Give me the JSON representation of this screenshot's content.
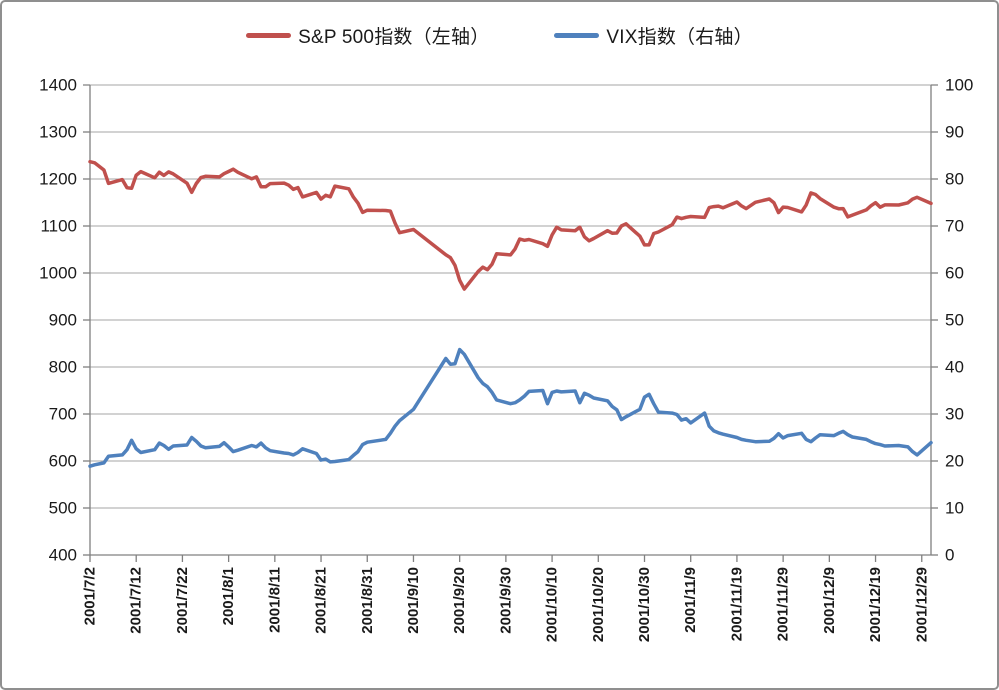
{
  "chart_data": {
    "type": "line",
    "title": "",
    "legend_position": "top",
    "grid": true,
    "x_axis": {
      "type": "date",
      "min": "2001/7/2",
      "max": "2001/12/31",
      "tick_labels": [
        "2001/7/2",
        "2001/7/12",
        "2001/7/22",
        "2001/8/1",
        "2001/8/11",
        "2001/8/21",
        "2001/8/31",
        "2001/9/10",
        "2001/9/20",
        "2001/9/30",
        "2001/10/10",
        "2001/10/20",
        "2001/10/30",
        "2001/11/9",
        "2001/11/19",
        "2001/11/29",
        "2001/12/9",
        "2001/12/19",
        "2001/12/29"
      ]
    },
    "y_axis_left": {
      "min": 400,
      "max": 1400,
      "step": 100,
      "tick_labels": [
        "1400",
        "1300",
        "1200",
        "1100",
        "1000",
        "900",
        "800",
        "700",
        "600",
        "500",
        "400"
      ]
    },
    "y_axis_right": {
      "min": 0,
      "max": 100,
      "step": 10,
      "tick_labels": [
        "100",
        "90",
        "80",
        "70",
        "60",
        "50",
        "40",
        "30",
        "20",
        "10",
        "0"
      ]
    },
    "dates": [
      "2001/7/2",
      "2001/7/3",
      "2001/7/5",
      "2001/7/6",
      "2001/7/9",
      "2001/7/10",
      "2001/7/11",
      "2001/7/12",
      "2001/7/13",
      "2001/7/16",
      "2001/7/17",
      "2001/7/18",
      "2001/7/19",
      "2001/7/20",
      "2001/7/23",
      "2001/7/24",
      "2001/7/25",
      "2001/7/26",
      "2001/7/27",
      "2001/7/30",
      "2001/7/31",
      "2001/8/1",
      "2001/8/2",
      "2001/8/3",
      "2001/8/6",
      "2001/8/7",
      "2001/8/8",
      "2001/8/9",
      "2001/8/10",
      "2001/8/13",
      "2001/8/14",
      "2001/8/15",
      "2001/8/16",
      "2001/8/17",
      "2001/8/20",
      "2001/8/21",
      "2001/8/22",
      "2001/8/23",
      "2001/8/24",
      "2001/8/27",
      "2001/8/28",
      "2001/8/29",
      "2001/8/30",
      "2001/8/31",
      "2001/9/4",
      "2001/9/5",
      "2001/9/6",
      "2001/9/7",
      "2001/9/10",
      "2001/9/17",
      "2001/9/18",
      "2001/9/19",
      "2001/9/20",
      "2001/9/21",
      "2001/9/24",
      "2001/9/25",
      "2001/9/26",
      "2001/9/27",
      "2001/9/28",
      "2001/10/1",
      "2001/10/2",
      "2001/10/3",
      "2001/10/4",
      "2001/10/5",
      "2001/10/8",
      "2001/10/9",
      "2001/10/10",
      "2001/10/11",
      "2001/10/12",
      "2001/10/15",
      "2001/10/16",
      "2001/10/17",
      "2001/10/18",
      "2001/10/19",
      "2001/10/22",
      "2001/10/23",
      "2001/10/24",
      "2001/10/25",
      "2001/10/26",
      "2001/10/29",
      "2001/10/30",
      "2001/10/31",
      "2001/11/1",
      "2001/11/2",
      "2001/11/5",
      "2001/11/6",
      "2001/11/7",
      "2001/11/8",
      "2001/11/9",
      "2001/11/12",
      "2001/11/13",
      "2001/11/14",
      "2001/11/15",
      "2001/11/16",
      "2001/11/19",
      "2001/11/20",
      "2001/11/21",
      "2001/11/23",
      "2001/11/26",
      "2001/11/27",
      "2001/11/28",
      "2001/11/29",
      "2001/11/30",
      "2001/12/3",
      "2001/12/4",
      "2001/12/5",
      "2001/12/6",
      "2001/12/7",
      "2001/12/10",
      "2001/12/11",
      "2001/12/12",
      "2001/12/13",
      "2001/12/14",
      "2001/12/17",
      "2001/12/18",
      "2001/12/19",
      "2001/12/20",
      "2001/12/21",
      "2001/12/24",
      "2001/12/26",
      "2001/12/27",
      "2001/12/28",
      "2001/12/31"
    ],
    "series": [
      {
        "id": "sp500",
        "name": "S&P 500指数（左轴）",
        "axis": "left",
        "color": "#C0504D",
        "values": [
          1236.72,
          1234.45,
          1219.24,
          1190.59,
          1198.78,
          1181.52,
          1180.18,
          1208.14,
          1215.68,
          1202.45,
          1214.44,
          1207.71,
          1215.02,
          1210.85,
          1191.03,
          1171.65,
          1190.49,
          1202.93,
          1205.82,
          1204.52,
          1211.23,
          1215.93,
          1220.75,
          1214.35,
          1200.48,
          1204.4,
          1183.53,
          1183.43,
          1190.16,
          1191.29,
          1186.73,
          1178.02,
          1181.66,
          1161.97,
          1171.41,
          1157.26,
          1165.31,
          1162.09,
          1184.93,
          1179.21,
          1161.51,
          1148.56,
          1129.03,
          1133.58,
          1132.94,
          1131.74,
          1106.4,
          1085.78,
          1092.54,
          1038.77,
          1032.74,
          1016.1,
          984.54,
          965.8,
          1003.45,
          1012.27,
          1007.04,
          1018.61,
          1040.94,
          1038.55,
          1051.33,
          1072.28,
          1069.63,
          1071.38,
          1062.44,
          1056.75,
          1080.99,
          1097.43,
          1091.65,
          1089.98,
          1097.54,
          1077.09,
          1068.61,
          1073.48,
          1089.9,
          1084.78,
          1085.2,
          1100.09,
          1104.61,
          1078.3,
          1059.79,
          1059.78,
          1084.1,
          1087.2,
          1102.84,
          1118.86,
          1115.8,
          1118.54,
          1120.31,
          1118.33,
          1139.09,
          1141.21,
          1142.24,
          1138.65,
          1151.06,
          1142.66,
          1137.03,
          1150.34,
          1157.42,
          1149.5,
          1128.52,
          1140.2,
          1139.45,
          1129.9,
          1144.8,
          1170.35,
          1167.1,
          1158.31,
          1139.93,
          1136.76,
          1137.07,
          1119.38,
          1123.09,
          1134.36,
          1142.92,
          1149.56,
          1139.93,
          1144.89,
          1144.65,
          1149.37,
          1157.13,
          1161.02,
          1148.08
        ]
      },
      {
        "id": "vix",
        "name": "VIX指数（右轴）",
        "axis": "right",
        "color": "#4F81BD",
        "values": [
          18.9,
          19.2,
          19.6,
          21.0,
          21.3,
          22.4,
          24.4,
          22.6,
          21.8,
          22.4,
          23.8,
          23.3,
          22.5,
          23.2,
          23.4,
          25.0,
          24.2,
          23.2,
          22.8,
          23.1,
          23.9,
          23.0,
          22.0,
          22.3,
          23.3,
          23.0,
          23.8,
          22.8,
          22.2,
          21.7,
          21.6,
          21.3,
          21.8,
          22.6,
          21.6,
          20.2,
          20.4,
          19.8,
          19.9,
          20.3,
          21.2,
          22.0,
          23.5,
          24.0,
          24.6,
          25.9,
          27.4,
          28.6,
          31.0,
          41.8,
          40.6,
          40.7,
          43.7,
          42.7,
          37.7,
          36.5,
          35.8,
          34.6,
          33.0,
          32.2,
          32.4,
          33.0,
          33.8,
          34.8,
          35.0,
          32.2,
          34.6,
          34.9,
          34.7,
          34.9,
          32.4,
          34.4,
          34.0,
          33.4,
          32.8,
          31.6,
          30.9,
          28.8,
          29.4,
          31.0,
          33.6,
          34.2,
          32.2,
          30.4,
          30.2,
          29.9,
          28.7,
          29.0,
          28.1,
          30.2,
          27.4,
          26.4,
          26.0,
          25.7,
          25.0,
          24.6,
          24.4,
          24.1,
          24.2,
          24.8,
          25.8,
          24.9,
          25.4,
          25.9,
          24.6,
          24.1,
          24.9,
          25.6,
          25.4,
          25.9,
          26.3,
          25.6,
          25.1,
          24.6,
          24.1,
          23.7,
          23.5,
          23.2,
          23.3,
          23.0,
          22.0,
          21.3,
          23.9
        ]
      }
    ],
    "colors": {
      "gridline": "#A6A6A6",
      "axis_line": "#808080",
      "text": "#1a1a1a"
    }
  }
}
